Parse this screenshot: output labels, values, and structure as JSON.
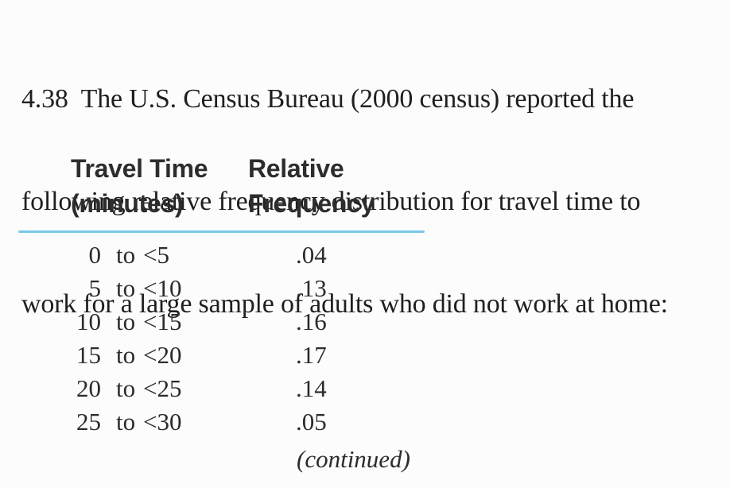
{
  "problem": {
    "number": "4.38",
    "lines": [
      "4.38  The U.S. Census Bureau (2000 census) reported the",
      "following relative frequency distribution for travel time to",
      "work for a large sample of adults who did not work at home:"
    ]
  },
  "table": {
    "col1_header_line1": "Travel Time",
    "col1_header_line2": "(minutes)",
    "col2_header_line1": "Relative",
    "col2_header_line2": "Frequency",
    "separator_word": "to",
    "rule_color": "#7cc7e8",
    "rows": [
      {
        "from": "0",
        "to": "<5",
        "value": ".04"
      },
      {
        "from": "5",
        "to": "<10",
        "value": ".13"
      },
      {
        "from": "10",
        "to": "<15",
        "value": ".16"
      },
      {
        "from": "15",
        "to": "<20",
        "value": ".17"
      },
      {
        "from": "20",
        "to": "<25",
        "value": ".14"
      },
      {
        "from": "25",
        "to": "<30",
        "value": ".05"
      }
    ],
    "continued_label": "(continued)"
  }
}
